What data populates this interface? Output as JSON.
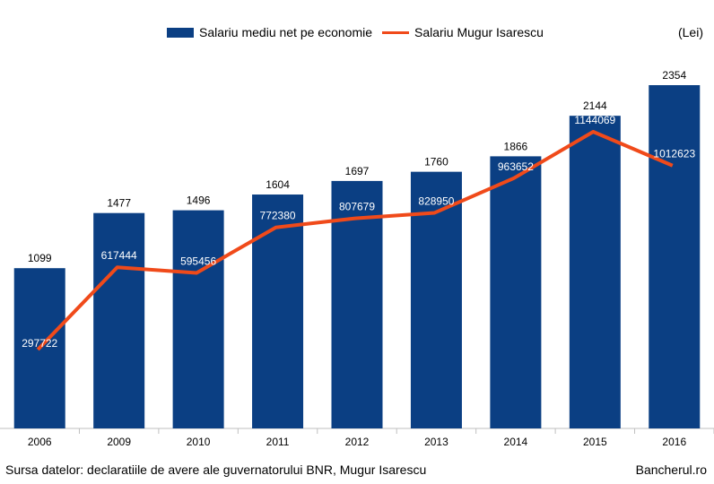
{
  "chart_data": {
    "type": "bar",
    "categories": [
      "2006",
      "2009",
      "2010",
      "2011",
      "2012",
      "2013",
      "2014",
      "2015",
      "2016"
    ],
    "series": [
      {
        "name": "Salariu mediu net pe economie",
        "type": "bar",
        "values": [
          1099,
          1477,
          1496,
          1604,
          1697,
          1760,
          1866,
          2144,
          2354
        ],
        "labels": [
          "1099",
          "1477",
          "1496",
          "1604",
          "1697",
          "1760",
          "1866",
          "2144",
          "2354"
        ]
      },
      {
        "name": "Salariu Mugur Isarescu",
        "type": "line",
        "values": [
          297722,
          617444,
          595456,
          772380,
          807679,
          828950,
          963652,
          1144069,
          1012623
        ],
        "labels": [
          "297722",
          "617444",
          "595456",
          "772380",
          "807679",
          "828950",
          "963652",
          "1144069",
          "1012623"
        ]
      }
    ],
    "bar_ylim": [
      0,
      2500
    ],
    "line_ylim": [
      0,
      1500000
    ],
    "grid": false,
    "legend_position": "top"
  },
  "unit_label": "(Lei)",
  "source": "Sursa datelor: declaratiile de avere ale guvernatorului BNR, Mugur Isarescu",
  "brand": "Bancherul.ro",
  "colors": {
    "bar": "#0b3f83",
    "line": "#f04a1a",
    "axis": "#bfbfbf"
  }
}
